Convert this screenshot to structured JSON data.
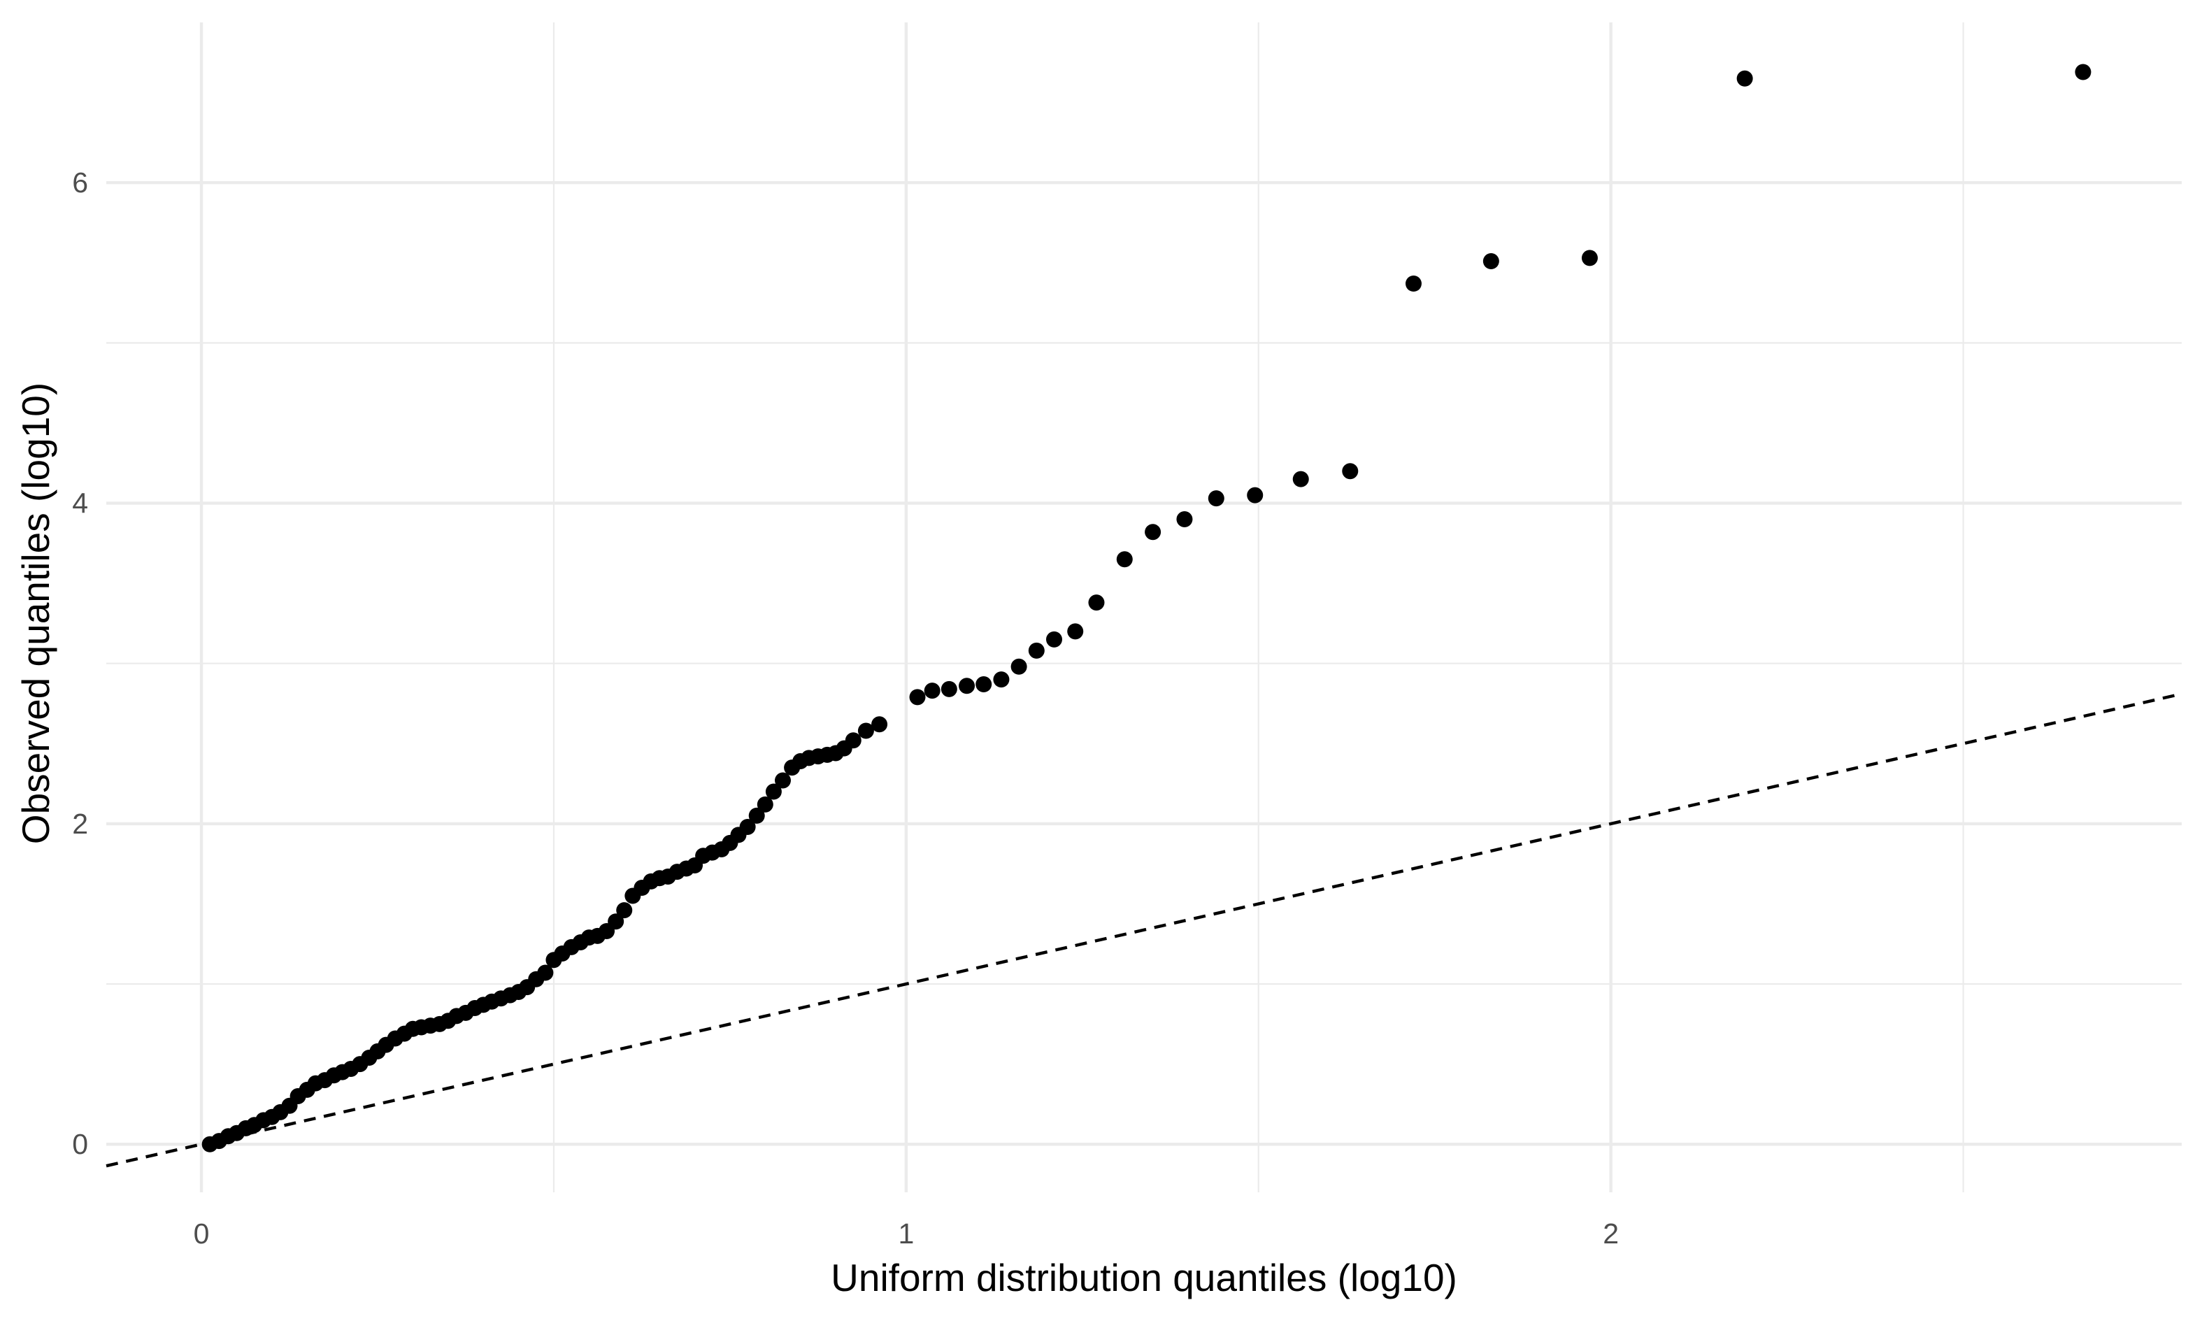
{
  "chart_data": {
    "type": "scatter",
    "title": "",
    "xlabel": "Uniform distribution quantiles (log10)",
    "ylabel": "Observed quantiles (log10)",
    "xlim": [
      -0.135,
      2.81
    ],
    "ylim": [
      -0.3,
      7.0
    ],
    "x_ticks": [
      0,
      1,
      2
    ],
    "x_tick_labels": [
      "0",
      "1",
      "2"
    ],
    "x_minor_ticks": [
      0.5,
      1.5,
      2.5
    ],
    "y_ticks": [
      0,
      2,
      4,
      6
    ],
    "y_tick_labels": [
      "0",
      "2",
      "4",
      "6"
    ],
    "y_minor_ticks": [
      1,
      3,
      5
    ],
    "grid": true,
    "legend": "none",
    "colors": {
      "points": "#000000",
      "reference_line": "#000000",
      "grid": "#ebebeb",
      "background": "#ffffff"
    },
    "reference_line": {
      "slope": 1,
      "intercept": 0,
      "style": "dashed"
    },
    "series": [
      {
        "values": [
          {
            "x": 0.012,
            "y": 0.0
          },
          {
            "x": 0.025,
            "y": 0.02
          },
          {
            "x": 0.038,
            "y": 0.05
          },
          {
            "x": 0.05,
            "y": 0.07
          },
          {
            "x": 0.063,
            "y": 0.1
          },
          {
            "x": 0.075,
            "y": 0.12
          },
          {
            "x": 0.088,
            "y": 0.15
          },
          {
            "x": 0.1,
            "y": 0.17
          },
          {
            "x": 0.112,
            "y": 0.2
          },
          {
            "x": 0.125,
            "y": 0.24
          },
          {
            "x": 0.137,
            "y": 0.3
          },
          {
            "x": 0.15,
            "y": 0.34
          },
          {
            "x": 0.162,
            "y": 0.38
          },
          {
            "x": 0.175,
            "y": 0.4
          },
          {
            "x": 0.188,
            "y": 0.43
          },
          {
            "x": 0.2,
            "y": 0.45
          },
          {
            "x": 0.212,
            "y": 0.47
          },
          {
            "x": 0.225,
            "y": 0.5
          },
          {
            "x": 0.238,
            "y": 0.54
          },
          {
            "x": 0.25,
            "y": 0.58
          },
          {
            "x": 0.262,
            "y": 0.62
          },
          {
            "x": 0.275,
            "y": 0.66
          },
          {
            "x": 0.288,
            "y": 0.69
          },
          {
            "x": 0.3,
            "y": 0.72
          },
          {
            "x": 0.312,
            "y": 0.73
          },
          {
            "x": 0.325,
            "y": 0.74
          },
          {
            "x": 0.338,
            "y": 0.75
          },
          {
            "x": 0.35,
            "y": 0.77
          },
          {
            "x": 0.362,
            "y": 0.8
          },
          {
            "x": 0.375,
            "y": 0.82
          },
          {
            "x": 0.388,
            "y": 0.85
          },
          {
            "x": 0.4,
            "y": 0.87
          },
          {
            "x": 0.412,
            "y": 0.89
          },
          {
            "x": 0.425,
            "y": 0.91
          },
          {
            "x": 0.438,
            "y": 0.93
          },
          {
            "x": 0.45,
            "y": 0.95
          },
          {
            "x": 0.462,
            "y": 0.98
          },
          {
            "x": 0.475,
            "y": 1.03
          },
          {
            "x": 0.488,
            "y": 1.07
          },
          {
            "x": 0.5,
            "y": 1.15
          },
          {
            "x": 0.512,
            "y": 1.19
          },
          {
            "x": 0.525,
            "y": 1.23
          },
          {
            "x": 0.538,
            "y": 1.26
          },
          {
            "x": 0.55,
            "y": 1.29
          },
          {
            "x": 0.562,
            "y": 1.3
          },
          {
            "x": 0.575,
            "y": 1.33
          },
          {
            "x": 0.588,
            "y": 1.39
          },
          {
            "x": 0.6,
            "y": 1.46
          },
          {
            "x": 0.612,
            "y": 1.55
          },
          {
            "x": 0.625,
            "y": 1.6
          },
          {
            "x": 0.638,
            "y": 1.64
          },
          {
            "x": 0.65,
            "y": 1.66
          },
          {
            "x": 0.662,
            "y": 1.67
          },
          {
            "x": 0.675,
            "y": 1.7
          },
          {
            "x": 0.688,
            "y": 1.72
          },
          {
            "x": 0.7,
            "y": 1.74
          },
          {
            "x": 0.712,
            "y": 1.8
          },
          {
            "x": 0.725,
            "y": 1.82
          },
          {
            "x": 0.738,
            "y": 1.84
          },
          {
            "x": 0.75,
            "y": 1.88
          },
          {
            "x": 0.762,
            "y": 1.93
          },
          {
            "x": 0.775,
            "y": 1.98
          },
          {
            "x": 0.788,
            "y": 2.05
          },
          {
            "x": 0.8,
            "y": 2.12
          },
          {
            "x": 0.812,
            "y": 2.2
          },
          {
            "x": 0.825,
            "y": 2.27
          },
          {
            "x": 0.838,
            "y": 2.35
          },
          {
            "x": 0.85,
            "y": 2.39
          },
          {
            "x": 0.862,
            "y": 2.41
          },
          {
            "x": 0.875,
            "y": 2.42
          },
          {
            "x": 0.888,
            "y": 2.43
          },
          {
            "x": 0.9,
            "y": 2.44
          },
          {
            "x": 0.912,
            "y": 2.47
          },
          {
            "x": 0.925,
            "y": 2.52
          },
          {
            "x": 0.943,
            "y": 2.58
          },
          {
            "x": 0.962,
            "y": 2.62
          },
          {
            "x": 1.016,
            "y": 2.79
          },
          {
            "x": 1.037,
            "y": 2.83
          },
          {
            "x": 1.061,
            "y": 2.84
          },
          {
            "x": 1.086,
            "y": 2.86
          },
          {
            "x": 1.11,
            "y": 2.87
          },
          {
            "x": 1.135,
            "y": 2.9
          },
          {
            "x": 1.16,
            "y": 2.98
          },
          {
            "x": 1.185,
            "y": 3.08
          },
          {
            "x": 1.21,
            "y": 3.15
          },
          {
            "x": 1.24,
            "y": 3.2
          },
          {
            "x": 1.27,
            "y": 3.38
          },
          {
            "x": 1.31,
            "y": 3.65
          },
          {
            "x": 1.35,
            "y": 3.82
          },
          {
            "x": 1.395,
            "y": 3.9
          },
          {
            "x": 1.44,
            "y": 4.03
          },
          {
            "x": 1.495,
            "y": 4.05
          },
          {
            "x": 1.56,
            "y": 4.15
          },
          {
            "x": 1.63,
            "y": 4.2
          },
          {
            "x": 1.72,
            "y": 5.37
          },
          {
            "x": 1.83,
            "y": 5.51
          },
          {
            "x": 1.97,
            "y": 5.53
          },
          {
            "x": 2.19,
            "y": 6.65
          },
          {
            "x": 2.67,
            "y": 6.69
          }
        ]
      }
    ]
  }
}
